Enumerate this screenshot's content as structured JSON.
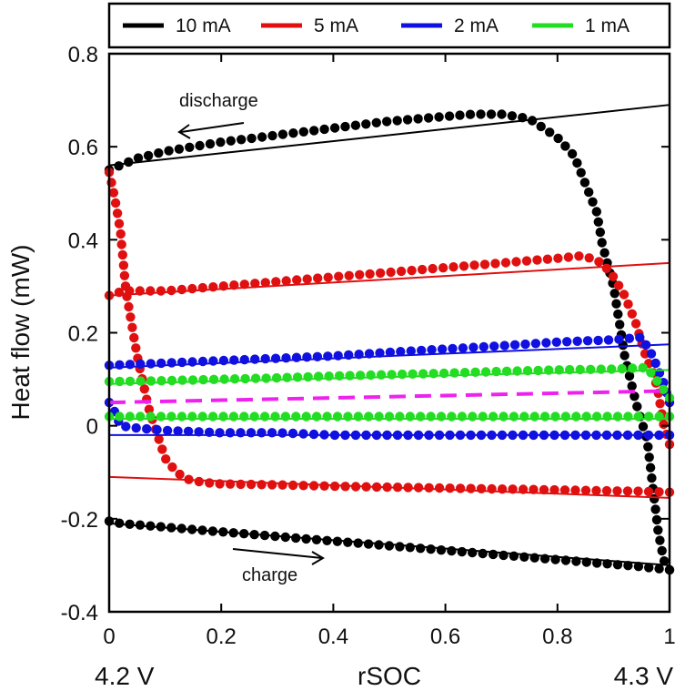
{
  "chart_data": {
    "type": "scatter",
    "title": "",
    "xlabel": "rSOC",
    "ylabel": "Heat flow (mW)",
    "xlim": [
      0,
      1
    ],
    "ylim": [
      -0.4,
      0.8
    ],
    "x_ticks": [
      "0",
      "0.2",
      "0.4",
      "0.6",
      "0.8",
      "1"
    ],
    "y_ticks": [
      "-0.4",
      "-0.2",
      "0",
      "0.2",
      "0.4",
      "0.6",
      "0.8"
    ],
    "x_end_labels": {
      "left": "4.2 V",
      "right": "4.3 V"
    },
    "grid": false,
    "legend_placement": "top, above plot",
    "annotations": {
      "discharge": "discharge",
      "charge": "charge"
    },
    "series": [
      {
        "name": "10 mA",
        "color": "#000000",
        "discharge": {
          "x": [
            0.0,
            0.01,
            0.03,
            0.05,
            0.1,
            0.2,
            0.3,
            0.4,
            0.5,
            0.6,
            0.65,
            0.7,
            0.75,
            0.8,
            0.83,
            0.85,
            0.87,
            0.88,
            0.9,
            0.92,
            0.94,
            0.96,
            0.97,
            0.98,
            0.99,
            1.0
          ],
          "y": [
            0.55,
            0.555,
            0.565,
            0.575,
            0.59,
            0.61,
            0.625,
            0.64,
            0.655,
            0.665,
            0.67,
            0.67,
            0.66,
            0.62,
            0.58,
            0.52,
            0.46,
            0.39,
            0.3,
            0.15,
            0.05,
            -0.03,
            -0.13,
            -0.23,
            -0.29,
            -0.31
          ]
        },
        "charge": {
          "x": [
            0.0,
            0.02,
            0.05,
            0.1,
            0.2,
            0.3,
            0.4,
            0.5,
            0.6,
            0.7,
            0.8,
            0.9,
            0.95,
            1.0
          ],
          "y": [
            -0.205,
            -0.21,
            -0.213,
            -0.218,
            -0.228,
            -0.238,
            -0.248,
            -0.258,
            -0.268,
            -0.278,
            -0.288,
            -0.298,
            -0.303,
            -0.31
          ]
        },
        "fit_discharge": {
          "x": [
            0,
            1
          ],
          "y": [
            0.56,
            0.69
          ]
        },
        "fit_charge": {
          "x": [
            0,
            1
          ],
          "y": [
            -0.21,
            -0.3
          ]
        }
      },
      {
        "name": "5 mA",
        "color": "#e01010",
        "discharge": {
          "x": [
            0.0,
            0.01,
            0.03,
            0.05,
            0.1,
            0.2,
            0.3,
            0.4,
            0.5,
            0.6,
            0.7,
            0.8,
            0.84,
            0.86,
            0.88,
            0.9,
            0.92,
            0.94,
            0.96,
            0.97,
            0.98,
            0.99,
            1.0
          ],
          "y": [
            0.28,
            0.285,
            0.29,
            0.29,
            0.29,
            0.3,
            0.31,
            0.32,
            0.33,
            0.34,
            0.35,
            0.36,
            0.365,
            0.36,
            0.35,
            0.32,
            0.28,
            0.22,
            0.14,
            0.12,
            0.07,
            0.0,
            -0.04
          ]
        },
        "charge": {
          "x": [
            0.0,
            0.01,
            0.02,
            0.03,
            0.05,
            0.07,
            0.1,
            0.12,
            0.14,
            0.16,
            0.18,
            0.2,
            0.3,
            0.4,
            0.5,
            0.6,
            0.7,
            0.8,
            0.9,
            0.95,
            1.0
          ],
          "y": [
            0.545,
            0.49,
            0.42,
            0.29,
            0.15,
            0.04,
            -0.07,
            -0.1,
            -0.115,
            -0.12,
            -0.123,
            -0.125,
            -0.127,
            -0.13,
            -0.132,
            -0.134,
            -0.136,
            -0.138,
            -0.14,
            -0.141,
            -0.143
          ]
        },
        "fit_discharge": {
          "x": [
            0,
            1
          ],
          "y": [
            0.28,
            0.35
          ]
        },
        "fit_charge": {
          "x": [
            0,
            1
          ],
          "y": [
            -0.11,
            -0.155
          ]
        }
      },
      {
        "name": "2 mA",
        "color": "#1010e0",
        "discharge": {
          "x": [
            0.0,
            0.1,
            0.2,
            0.3,
            0.4,
            0.5,
            0.6,
            0.7,
            0.8,
            0.9,
            0.95,
            0.97,
            0.99,
            1.0
          ],
          "y": [
            0.13,
            0.135,
            0.14,
            0.145,
            0.15,
            0.158,
            0.165,
            0.172,
            0.18,
            0.185,
            0.19,
            0.15,
            0.09,
            0.05
          ]
        },
        "charge": {
          "x": [
            0.0,
            0.01,
            0.02,
            0.05,
            0.1,
            0.2,
            0.3,
            0.4,
            0.5,
            0.6,
            0.7,
            0.8,
            0.9,
            1.0
          ],
          "y": [
            0.05,
            0.03,
            0.0,
            -0.005,
            -0.01,
            -0.015,
            -0.015,
            -0.02,
            -0.02,
            -0.02,
            -0.02,
            -0.02,
            -0.02,
            -0.02
          ]
        },
        "fit_discharge": {
          "x": [
            0,
            1
          ],
          "y": [
            0.125,
            0.175
          ]
        },
        "fit_charge": {
          "x": [
            0,
            1
          ],
          "y": [
            -0.02,
            -0.02
          ]
        }
      },
      {
        "name": "1 mA",
        "color": "#22dd22",
        "discharge": {
          "x": [
            0.0,
            0.1,
            0.2,
            0.3,
            0.4,
            0.5,
            0.6,
            0.7,
            0.8,
            0.9,
            0.96,
            1.0
          ],
          "y": [
            0.095,
            0.097,
            0.1,
            0.103,
            0.107,
            0.11,
            0.113,
            0.117,
            0.12,
            0.122,
            0.125,
            0.06
          ]
        },
        "charge": {
          "x": [
            0.0,
            0.1,
            0.2,
            0.3,
            0.4,
            0.5,
            0.6,
            0.7,
            0.8,
            0.9,
            1.0
          ],
          "y": [
            0.02,
            0.02,
            0.02,
            0.02,
            0.02,
            0.02,
            0.02,
            0.02,
            0.02,
            0.02,
            0.02
          ]
        },
        "fit_discharge": {
          "x": [
            0,
            1
          ],
          "y": [
            0.09,
            0.12
          ]
        },
        "fit_charge": {
          "x": [
            0,
            1
          ],
          "y": [
            0.015,
            0.015
          ]
        }
      }
    ],
    "reference_line": {
      "color": "#ee22ee",
      "style": "dashed",
      "x": [
        0,
        1
      ],
      "y": [
        0.05,
        0.075
      ]
    }
  }
}
